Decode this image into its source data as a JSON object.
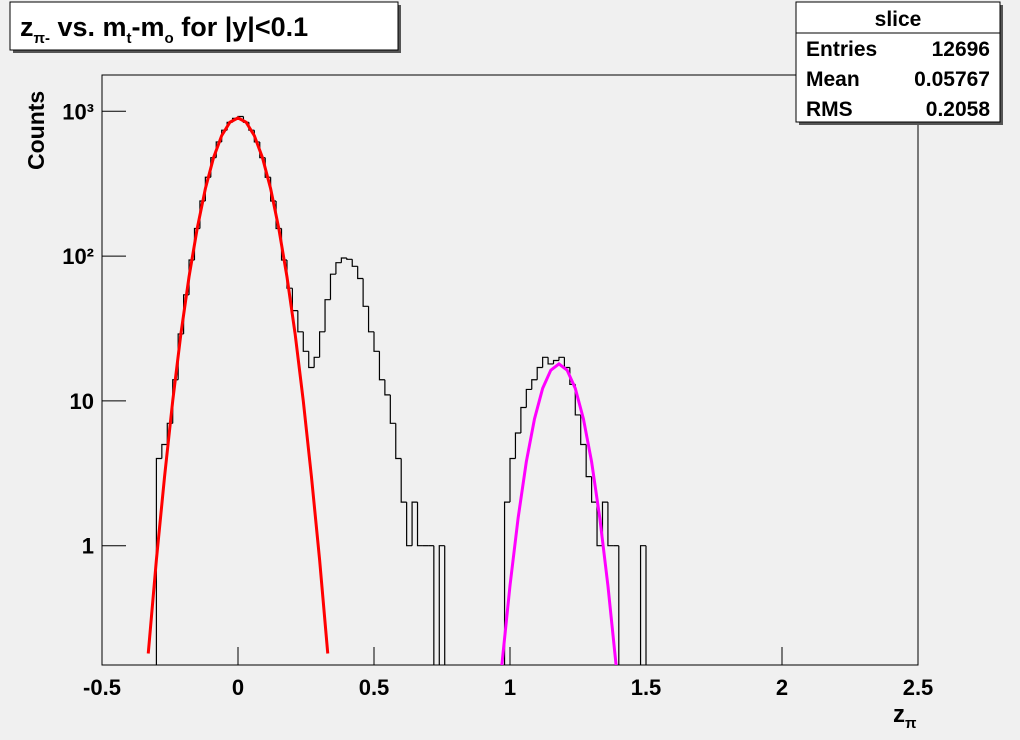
{
  "chart_data": {
    "type": "histogram",
    "title_parts": [
      "z",
      "π-",
      " vs. m",
      "t",
      "-m",
      "o",
      " for |y|<0.1"
    ],
    "x_label_parts": [
      "z",
      "π"
    ],
    "y_label": "Counts",
    "log_y": true,
    "xlim": [
      -0.5,
      2.5
    ],
    "xticks": [
      -0.5,
      0,
      0.5,
      1,
      1.5,
      2,
      2.5
    ],
    "ylim": [
      0.15,
      1780
    ],
    "yticks": [
      1,
      10,
      {
        "value": 100,
        "label": "10²"
      },
      {
        "value": 1000,
        "label": "10³"
      }
    ],
    "color": "#000000",
    "bins": [
      -0.3,
      -0.28,
      -0.26,
      -0.24,
      -0.22,
      -0.2,
      -0.18,
      -0.16,
      -0.14,
      -0.12,
      -0.1,
      -0.08,
      -0.06,
      -0.04,
      -0.02,
      0,
      0.02,
      0.04,
      0.06,
      0.08,
      0.1,
      0.12,
      0.14,
      0.16,
      0.18,
      0.2,
      0.22,
      0.24,
      0.26,
      0.28,
      0.3,
      0.32,
      0.34,
      0.36,
      0.38,
      0.4,
      0.42,
      0.44,
      0.46,
      0.48,
      0.5,
      0.52,
      0.54,
      0.56,
      0.58,
      0.6,
      0.62,
      0.64,
      0.66,
      0.68,
      0.7,
      0.72,
      0.74,
      0.76,
      0.78,
      0.8,
      0.82,
      0.84,
      0.86,
      0.88,
      0.9,
      0.92,
      0.94,
      0.96,
      0.98,
      1,
      1.02,
      1.04,
      1.06,
      1.08,
      1.1,
      1.12,
      1.14,
      1.16,
      1.18,
      1.2,
      1.22,
      1.24,
      1.26,
      1.28,
      1.3,
      1.32,
      1.34,
      1.36,
      1.38,
      1.4,
      1.42,
      1.44,
      1.46,
      1.48,
      1.5
    ],
    "values": [
      4,
      5,
      7,
      14,
      29,
      54,
      94,
      155,
      240,
      350,
      478,
      614,
      740,
      839,
      893,
      920,
      839,
      740,
      614,
      478,
      350,
      240,
      155,
      94,
      60,
      42,
      30,
      22,
      17,
      20,
      30,
      50,
      75,
      90,
      97,
      95,
      85,
      70,
      45,
      30,
      22,
      14,
      11,
      7,
      4,
      2,
      1,
      2,
      1,
      1,
      1,
      0,
      1,
      0,
      0,
      0,
      0,
      0,
      0,
      0,
      0,
      0,
      0,
      0,
      2,
      4,
      6,
      9,
      12,
      14,
      17,
      20,
      18,
      19,
      20,
      17,
      13,
      8,
      5,
      3,
      2,
      1,
      2,
      1,
      1,
      0,
      0,
      0,
      0,
      1
    ],
    "fits": [
      {
        "color": "#ff0000",
        "x": [
          -0.33,
          -0.3,
          -0.27,
          -0.24,
          -0.21,
          -0.18,
          -0.15,
          -0.12,
          -0.09,
          -0.06,
          -0.03,
          0,
          0.03,
          0.06,
          0.09,
          0.12,
          0.15,
          0.18,
          0.21,
          0.24,
          0.27,
          0.3,
          0.33
        ],
        "values": [
          0.18,
          0.8,
          3,
          10,
          29,
          72,
          155,
          292,
          478,
          679,
          839,
          900,
          839,
          679,
          478,
          292,
          155,
          72,
          29,
          10,
          3,
          0.8,
          0.18
        ]
      },
      {
        "color": "#ff00ff",
        "x": [
          0.97,
          1,
          1.03,
          1.06,
          1.09,
          1.12,
          1.15,
          1.18,
          1.21,
          1.24,
          1.27,
          1.3,
          1.33,
          1.36,
          1.39
        ],
        "values": [
          0.15,
          0.53,
          1.56,
          3.8,
          7.5,
          12.2,
          16.3,
          18,
          16.3,
          12.2,
          7.5,
          3.8,
          1.56,
          0.53,
          0.15
        ]
      }
    ],
    "stats": {
      "name": "slice",
      "rows": [
        [
          "Entries",
          12696
        ],
        [
          "Mean",
          0.05767
        ],
        [
          "RMS",
          0.2058
        ]
      ]
    }
  }
}
